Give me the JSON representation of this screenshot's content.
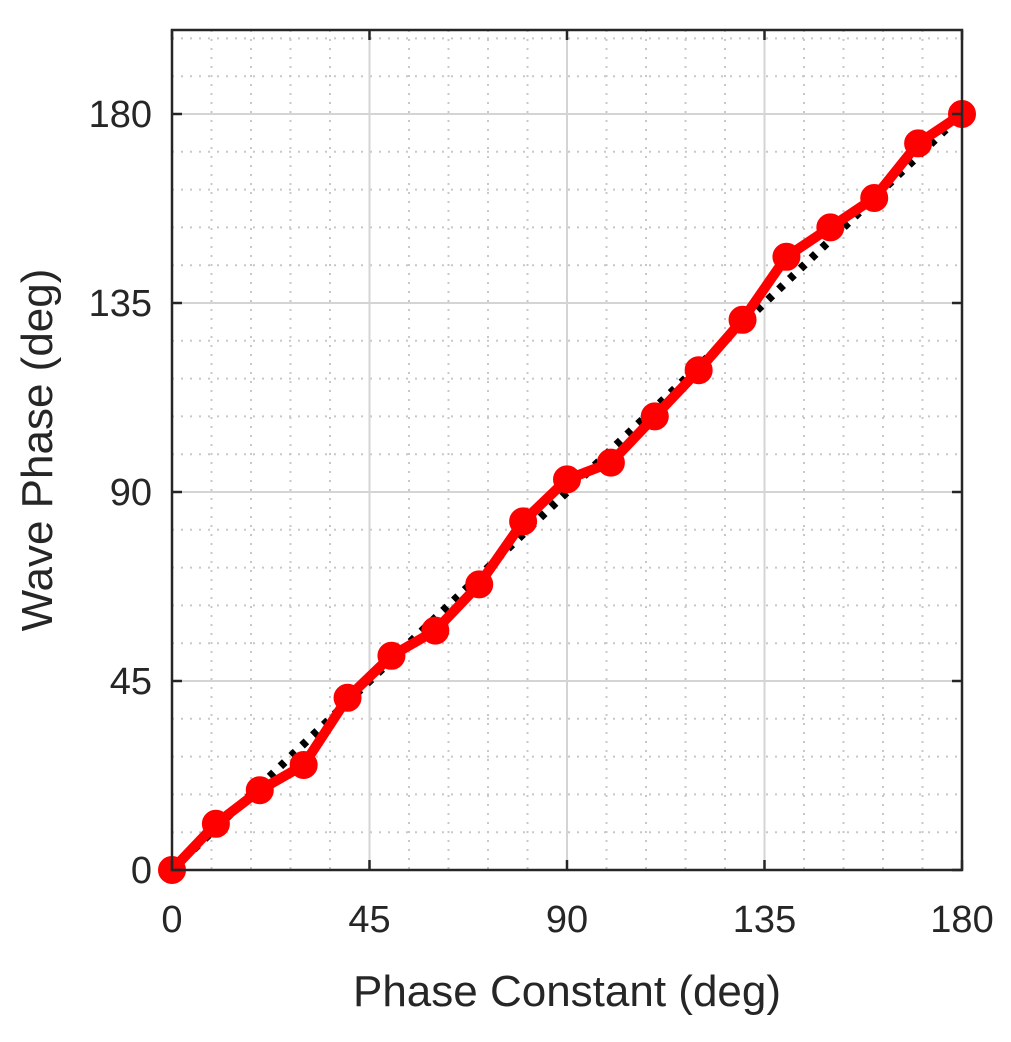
{
  "chart_data": {
    "type": "line",
    "xlabel": "Phase Constant (deg)",
    "ylabel": "Wave Phase (deg)",
    "xlim": [
      0,
      180
    ],
    "ylim": [
      0,
      200
    ],
    "xticks": [
      0,
      45,
      90,
      135,
      180
    ],
    "yticks": [
      0,
      45,
      90,
      135,
      180
    ],
    "xtick_labels": [
      "0",
      "45",
      "90",
      "135",
      "180"
    ],
    "ytick_labels": [
      "0",
      "45",
      "90",
      "135",
      "180"
    ],
    "grid": true,
    "minor_grid": true,
    "legend": "none",
    "series": [
      {
        "style": "dotted",
        "color": "#000000",
        "x": [
          0,
          180
        ],
        "y": [
          0,
          180
        ]
      },
      {
        "style": "solid-with-circle-markers",
        "color": "#ff0000",
        "x": [
          0,
          10,
          20,
          30,
          40,
          50,
          60,
          70,
          80,
          90,
          100,
          110,
          120,
          130,
          140,
          150,
          160,
          170,
          180
        ],
        "y": [
          0,
          11,
          19,
          25,
          41,
          51,
          57,
          68,
          83,
          93,
          97,
          108,
          119,
          131,
          146,
          153,
          160,
          173,
          180
        ]
      }
    ]
  }
}
